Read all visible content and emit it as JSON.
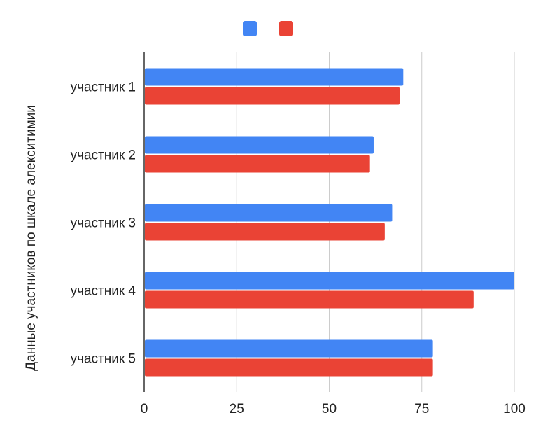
{
  "chart_data": {
    "type": "bar",
    "orientation": "horizontal",
    "categories": [
      "участник 1",
      "участник 2",
      "участник 3",
      "участник 4",
      "участник 5"
    ],
    "series": [
      {
        "color": "#4285F4",
        "values": [
          70,
          62,
          67,
          100,
          78
        ]
      },
      {
        "color": "#EA4335",
        "values": [
          69,
          61,
          65,
          89,
          78
        ]
      }
    ],
    "title": "",
    "xlabel": "",
    "ylabel": "Данные участников по шкале алекситимии",
    "xlim": [
      0,
      100
    ],
    "x_ticks": [
      "0",
      "25",
      "50",
      "75",
      "100"
    ],
    "grid": true,
    "legend_position": "top-center"
  }
}
